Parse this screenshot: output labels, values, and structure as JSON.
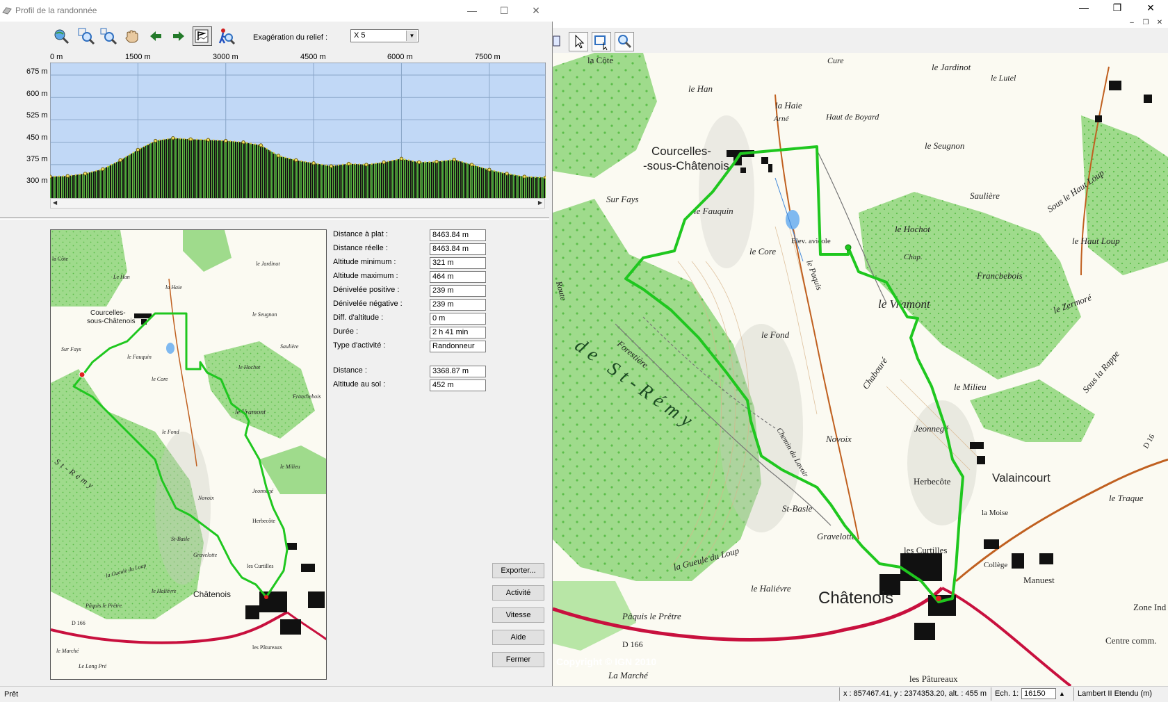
{
  "main_window": {
    "controls": {
      "minimize": "—",
      "restore": "❐",
      "close": "✕"
    },
    "mdi_controls": {
      "minimize": "–",
      "restore": "❐",
      "close": "✕"
    }
  },
  "map_toolbar": {
    "tools": [
      {
        "icon": "document-icon"
      },
      {
        "icon": "pointer-icon"
      },
      {
        "icon": "select-rectangle-icon"
      },
      {
        "icon": "zoom-icon"
      }
    ]
  },
  "profile_window": {
    "title": "Profil de la randonnée",
    "controls": {
      "minimize": "—",
      "maximize": "☐",
      "close": "✕"
    },
    "toolbar_icons": [
      "globe-zoom-icon",
      "zoom-in-icon",
      "zoom-out-icon",
      "hand-pan-icon",
      "arrow-left-icon",
      "arrow-right-icon",
      "profile-flag-icon",
      "hiker-zoom-icon"
    ],
    "exaggeration_label": "Exagération du relief :",
    "exaggeration_value": "X 5",
    "chart_data": {
      "type": "area",
      "x_unit": "m",
      "x_ticks": [
        "0 m",
        "1500 m",
        "3000 m",
        "4500 m",
        "6000 m",
        "7500 m"
      ],
      "y_ticks": [
        "675 m",
        "600 m",
        "525 m",
        "450 m",
        "375 m",
        "300 m"
      ],
      "xlim": [
        0,
        8463.84
      ],
      "ylim": [
        263,
        717
      ],
      "grid": true,
      "x": [
        0,
        300,
        600,
        900,
        1200,
        1500,
        1800,
        2100,
        2400,
        2700,
        3000,
        3300,
        3600,
        3900,
        4200,
        4500,
        4800,
        5100,
        5400,
        5700,
        6000,
        6300,
        6600,
        6900,
        7200,
        7500,
        7800,
        8100,
        8463.84
      ],
      "y": [
        335,
        337,
        345,
        360,
        390,
        425,
        455,
        464,
        460,
        458,
        455,
        450,
        440,
        405,
        390,
        380,
        370,
        378,
        375,
        383,
        395,
        383,
        385,
        392,
        375,
        358,
        345,
        335,
        332
      ]
    },
    "stats": [
      {
        "label": "Distance à plat :",
        "value": "8463.84 m"
      },
      {
        "label": "Distance réelle :",
        "value": "8463.84 m"
      },
      {
        "label": "Altitude minimum :",
        "value": "321 m"
      },
      {
        "label": "Altitude maximum :",
        "value": "464 m"
      },
      {
        "label": "Dénivelée positive :",
        "value": "239 m"
      },
      {
        "label": "Dénivelée négative :",
        "value": "239 m"
      },
      {
        "label": "Diff. d'altitude :",
        "value": "0 m"
      },
      {
        "label": "Durée :",
        "value": "2 h 41 min"
      },
      {
        "label": "Type d'activité :",
        "value": "Randonneur"
      },
      {
        "label": "Distance :",
        "value": "3368.87 m"
      },
      {
        "label": "Altitude au sol :",
        "value": "452 m"
      }
    ],
    "buttons": {
      "export": "Exporter...",
      "activity": "Activité",
      "speed": "Vitesse",
      "help": "Aide",
      "close": "Fermer"
    }
  },
  "map_labels": {
    "main": [
      {
        "t": "la Côte"
      },
      {
        "t": "Cure"
      },
      {
        "t": "le Jardinot"
      },
      {
        "t": "le Lutel"
      },
      {
        "t": "le Han"
      },
      {
        "t": "la Haie"
      },
      {
        "t": "Arné"
      },
      {
        "t": "Haut de Boyard"
      },
      {
        "t": "Courcelles-"
      },
      {
        "t": "-sous-Châtenois"
      },
      {
        "t": "le Seugnon"
      },
      {
        "t": "Saulière"
      },
      {
        "t": "Sous le Haut Loup"
      },
      {
        "t": "Sur Fays"
      },
      {
        "t": "le Fauquin"
      },
      {
        "t": "le Hochot"
      },
      {
        "t": "le Haut Loup"
      },
      {
        "t": "le Core"
      },
      {
        "t": "Elev. avicole"
      },
      {
        "t": "Chap."
      },
      {
        "t": "Francbebois"
      },
      {
        "t": "le Vramont"
      },
      {
        "t": "le Zermoré"
      },
      {
        "t": "le Paquis"
      },
      {
        "t": "le Fond"
      },
      {
        "t": "de St-Rémy"
      },
      {
        "t": "Forestière"
      },
      {
        "t": "Chabouré"
      },
      {
        "t": "le Milieu"
      },
      {
        "t": "Sous la Rappe"
      },
      {
        "t": "Jeonnegé"
      },
      {
        "t": "Novoix"
      },
      {
        "t": "Herbecôte"
      },
      {
        "t": "Valaincourt"
      },
      {
        "t": "le Traque"
      },
      {
        "t": "la Moise"
      },
      {
        "t": "St-Basle"
      },
      {
        "t": "Gravelotte"
      },
      {
        "t": "les Curtilles"
      },
      {
        "t": "Collège"
      },
      {
        "t": "Manuest"
      },
      {
        "t": "la Gueule du Loup"
      },
      {
        "t": "le Haliévre"
      },
      {
        "t": "Châtenois"
      },
      {
        "t": "Pâquis le Prêtre"
      },
      {
        "t": "D 166"
      },
      {
        "t": "D 16"
      },
      {
        "t": "les Pâtureaux"
      },
      {
        "t": "La Marché"
      },
      {
        "t": "Zone Ind"
      },
      {
        "t": "Centre comm."
      },
      {
        "t": "Copyright © IGN 2010"
      },
      {
        "t": "Route"
      },
      {
        "t": "Chemin du Lavoir"
      }
    ],
    "mini": [
      {
        "t": "la Côte"
      },
      {
        "t": "Le Han"
      },
      {
        "t": "la Haie"
      },
      {
        "t": "le Jardinot"
      },
      {
        "t": "Courcelles-"
      },
      {
        "t": "sous-Châtenois"
      },
      {
        "t": "le Seugnon"
      },
      {
        "t": "Sur Fays"
      },
      {
        "t": "le Fauquin"
      },
      {
        "t": "Saulière"
      },
      {
        "t": "le Hochot"
      },
      {
        "t": "le Core"
      },
      {
        "t": "Francbebois"
      },
      {
        "t": "le Vramont"
      },
      {
        "t": "le Fond"
      },
      {
        "t": "le Milieu"
      },
      {
        "t": "St-Rémy"
      },
      {
        "t": "Jeonnegé"
      },
      {
        "t": "Novoix"
      },
      {
        "t": "Herbecôte"
      },
      {
        "t": "St-Basle"
      },
      {
        "t": "Gravelotte"
      },
      {
        "t": "les Curtilles"
      },
      {
        "t": "la Gueule du Loup"
      },
      {
        "t": "le Haliévre"
      },
      {
        "t": "Châtenois"
      },
      {
        "t": "Pâquis le Prêtre"
      },
      {
        "t": "D 166"
      },
      {
        "t": "les Pâtureaux"
      },
      {
        "t": "le Marché"
      },
      {
        "t": "Le Long Pré"
      }
    ]
  },
  "status_bar": {
    "state": "Prêt",
    "coords": "x : 857467.41, y : 2374353.20, alt. : 455 m",
    "scale_label": "Ech. 1:",
    "scale_value": "16150",
    "projection": "Lambert II Etendu (m)"
  }
}
